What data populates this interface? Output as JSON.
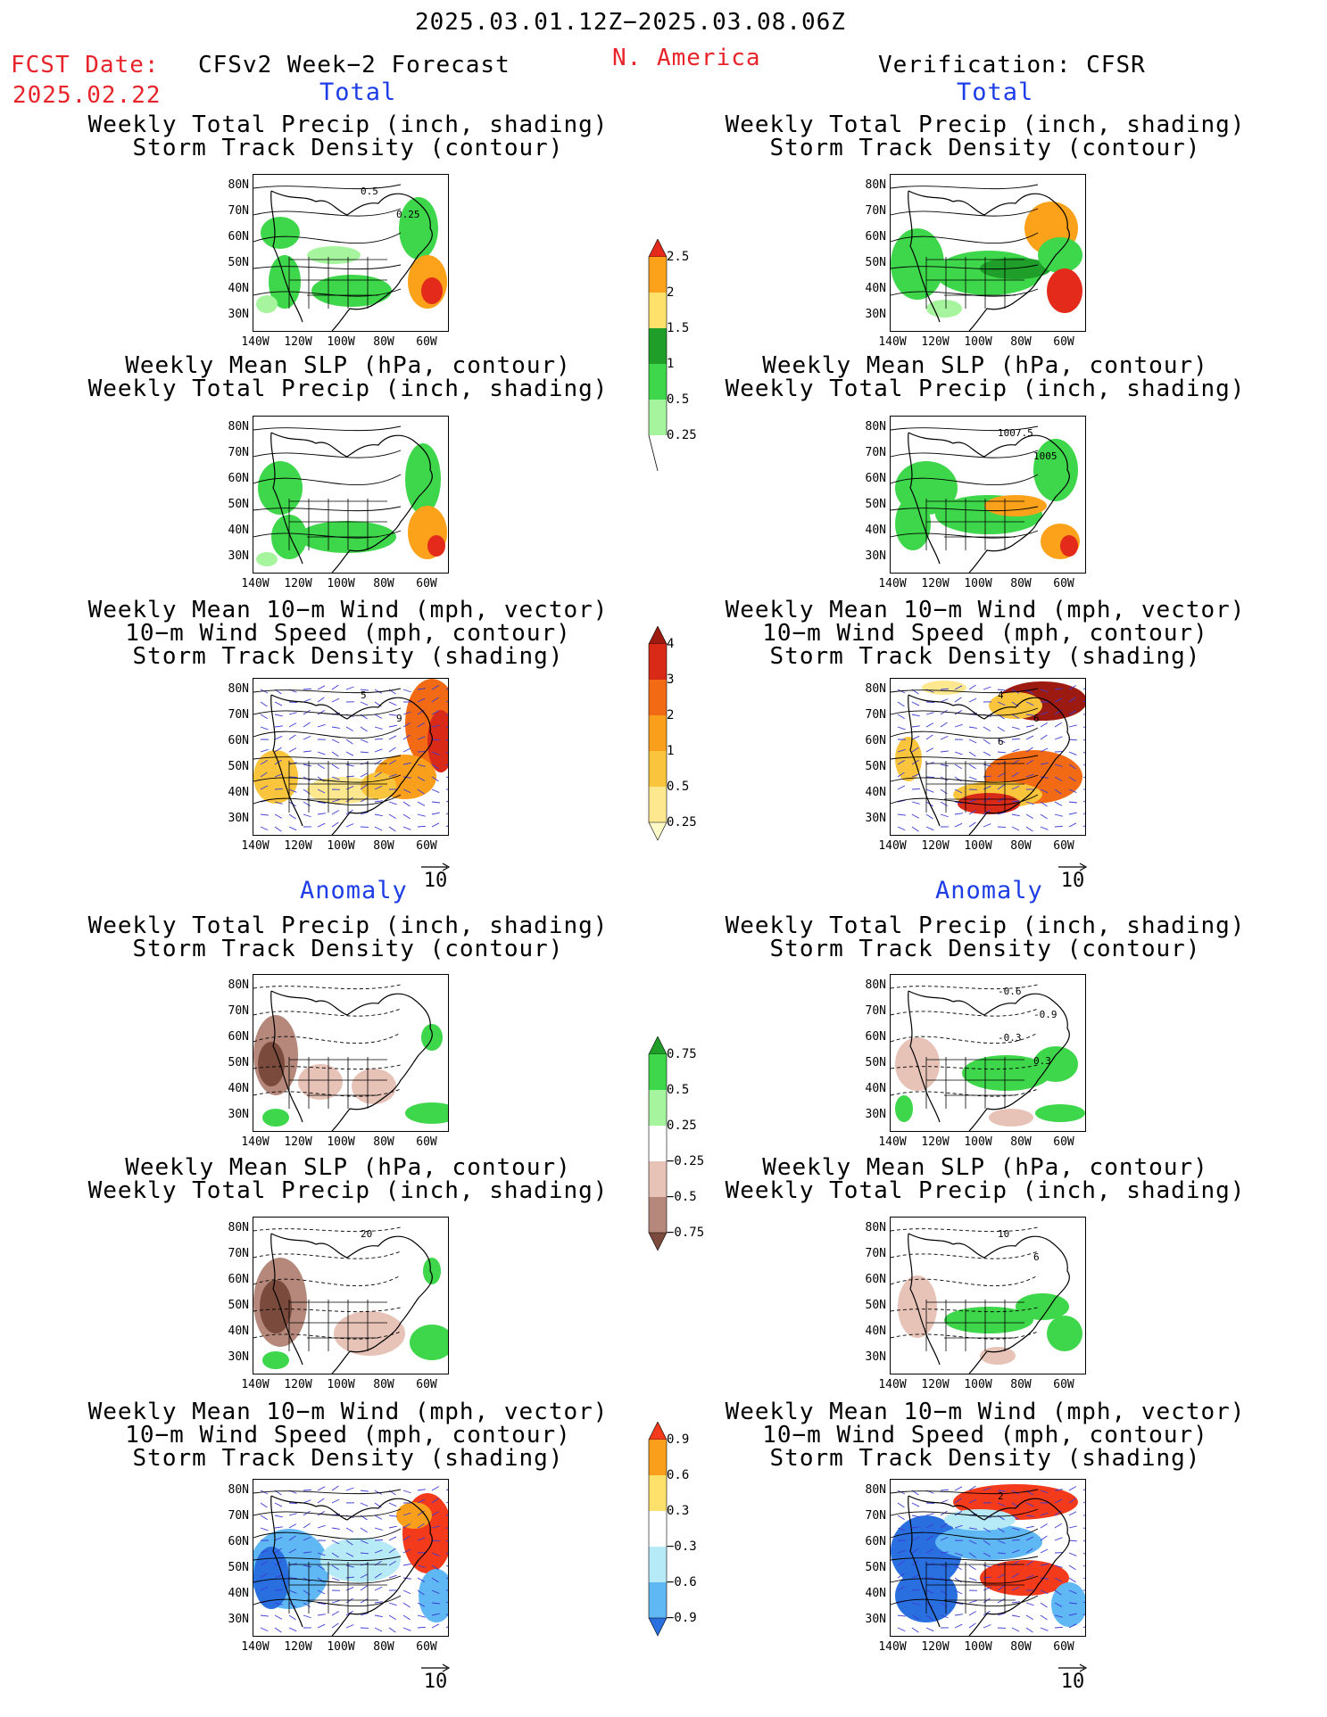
{
  "header": {
    "period": "2025.03.01.12Z−2025.03.08.06Z",
    "fcst_label": "FCST Date:",
    "fcst_date": "2025.02.22",
    "left_title": "CFSv2 Week−2 Forecast",
    "region": "N. America",
    "right_title": "Verification: CFSR"
  },
  "sections": {
    "total": "Total",
    "anomaly": "Anomaly"
  },
  "titles": {
    "precip_track": [
      "Weekly Total Precip (inch, shading)",
      "Storm Track Density (contour)"
    ],
    "slp_precip": [
      "Weekly Mean SLP (hPa, contour)",
      "Weekly Total Precip (inch, shading)"
    ],
    "wind_track": [
      "Weekly Mean 10−m Wind (mph, vector)",
      "10−m Wind Speed (mph, contour)",
      "Storm Track Density (shading)"
    ]
  },
  "axes": {
    "lat_ticks": [
      "80N",
      "70N",
      "60N",
      "50N",
      "40N",
      "30N"
    ],
    "lon_ticks": [
      "140W",
      "120W",
      "100W",
      "80W",
      "60W"
    ]
  },
  "vector_reference": "10",
  "map_annotations": {
    "fc_total_precip": [
      "0.5",
      "0.25"
    ],
    "obs_total_slp": [
      "1007.5",
      "1005"
    ],
    "fc_total_wind": [
      "5",
      "9"
    ],
    "obs_total_wind": [
      "4",
      "6",
      "6"
    ],
    "obs_anom_precip": [
      "-0.6",
      "-0.9",
      "-0.3",
      "0.3"
    ],
    "fc_anom_slp": [
      "20"
    ],
    "obs_anom_slp": [
      "10",
      "6"
    ],
    "obs_anom_wind": [
      "2"
    ]
  },
  "colorbars": {
    "total_precip": {
      "labels": [
        "2.5",
        "2",
        "1.5",
        "1",
        "0.5",
        "0.25"
      ],
      "colors": [
        "#e32a1b",
        "#fba21a",
        "#fde16a",
        "#1f9f2a",
        "#3ed64a",
        "#a6f59e"
      ]
    },
    "total_track": {
      "labels": [
        "4",
        "3",
        "2",
        "1",
        "0.5",
        "0.25"
      ],
      "colors": [
        "#9c1a10",
        "#d92a18",
        "#f26b14",
        "#fa9f1b",
        "#fbc43d",
        "#fde890",
        "#fefac8"
      ]
    },
    "anom_precip": {
      "labels": [
        "0.75",
        "0.5",
        "0.25",
        "−0.25",
        "−0.5",
        "−0.75"
      ],
      "colors": [
        "#1f9f2a",
        "#3ed64a",
        "#a6f59e",
        "#ffffff",
        "#e7c2b7",
        "#b5887b",
        "#7a4a3c"
      ]
    },
    "anom_track": {
      "labels": [
        "0.9",
        "0.6",
        "0.3",
        "−0.3",
        "−0.6",
        "−0.9"
      ],
      "colors": [
        "#f33a1a",
        "#fa9f1b",
        "#fde16a",
        "#ffffff",
        "#b7eaf7",
        "#5fb7f4",
        "#2a6fe0"
      ]
    }
  }
}
